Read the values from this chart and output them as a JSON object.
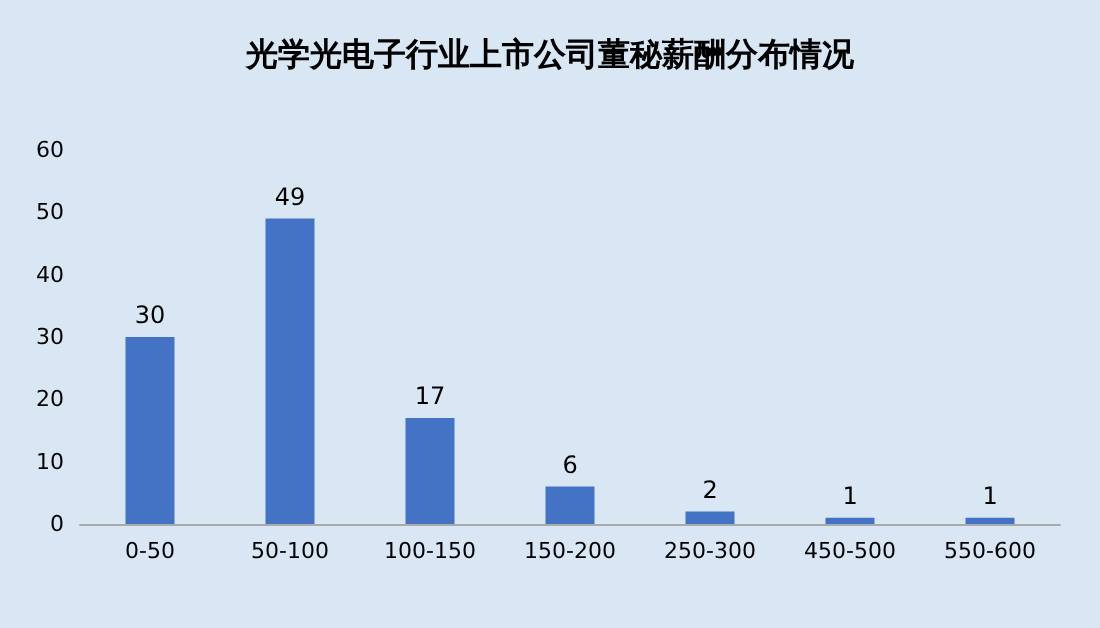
{
  "chart_data": {
    "type": "bar",
    "title": "光学光电子行业上市公司董秘薪酬分布情况",
    "categories": [
      "0-50",
      "50-100",
      "100-150",
      "150-200",
      "250-300",
      "450-500",
      "550-600"
    ],
    "values": [
      30,
      49,
      17,
      6,
      2,
      1,
      1
    ],
    "color": "#4472c4",
    "ylim": [
      0,
      60
    ],
    "yticks": [
      0,
      10,
      20,
      30,
      40,
      50,
      60
    ],
    "grid": false,
    "data_labels": true
  }
}
